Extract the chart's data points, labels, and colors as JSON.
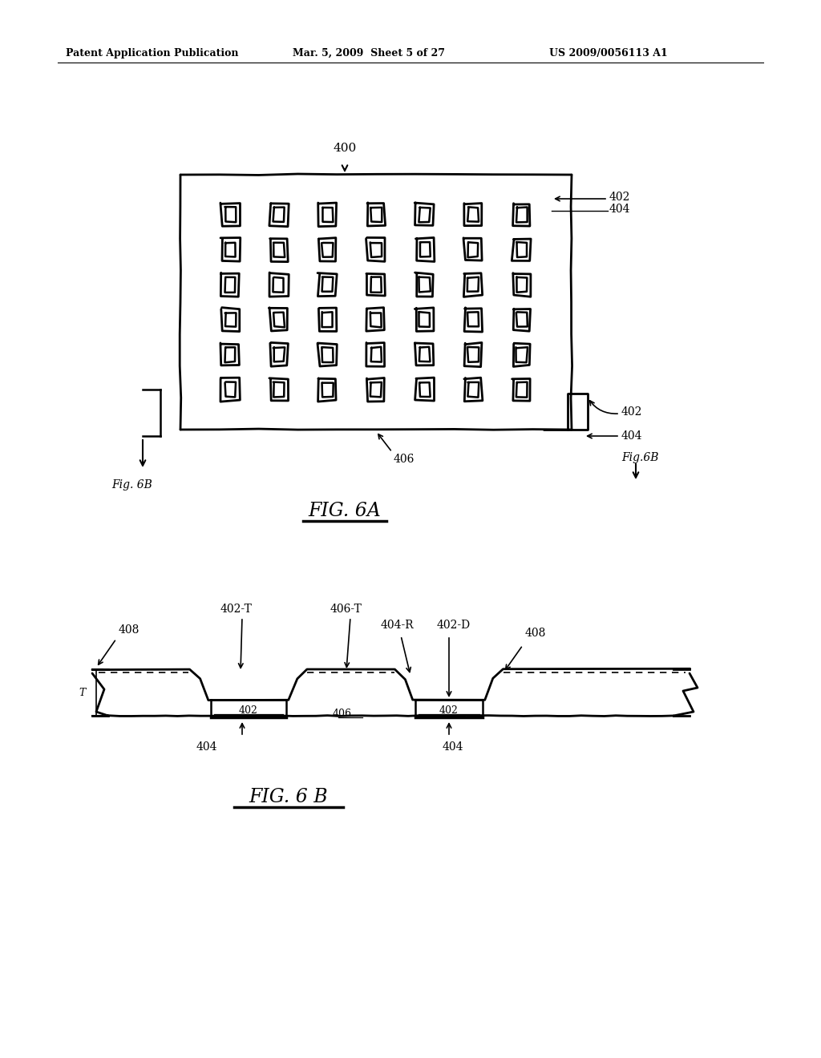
{
  "bg_color": "#ffffff",
  "header_left": "Patent Application Publication",
  "header_mid": "Mar. 5, 2009  Sheet 5 of 27",
  "header_right": "US 2009/0056113 A1",
  "fig6a_title": "FIG. 6A",
  "fig6b_title": "FIG. 6 B",
  "label_400": "400",
  "label_402_top": "402",
  "label_404_top": "404",
  "label_402_bot": "402",
  "label_404_bot": "404",
  "label_406_6a": "406",
  "label_fig6b_left": "Fig. 6B",
  "label_fig6b_right": "Fig.6B",
  "label_408_left": "408",
  "label_402T": "402-T",
  "label_406T": "406-T",
  "label_404R": "404-R",
  "label_402D": "402-D",
  "label_408_right": "408",
  "label_402_c1": "402",
  "label_406_6b": "406",
  "label_402_c2": "402",
  "label_404_left": "404",
  "label_404_right": "404",
  "grid_rows": 6,
  "grid_cols": 7
}
